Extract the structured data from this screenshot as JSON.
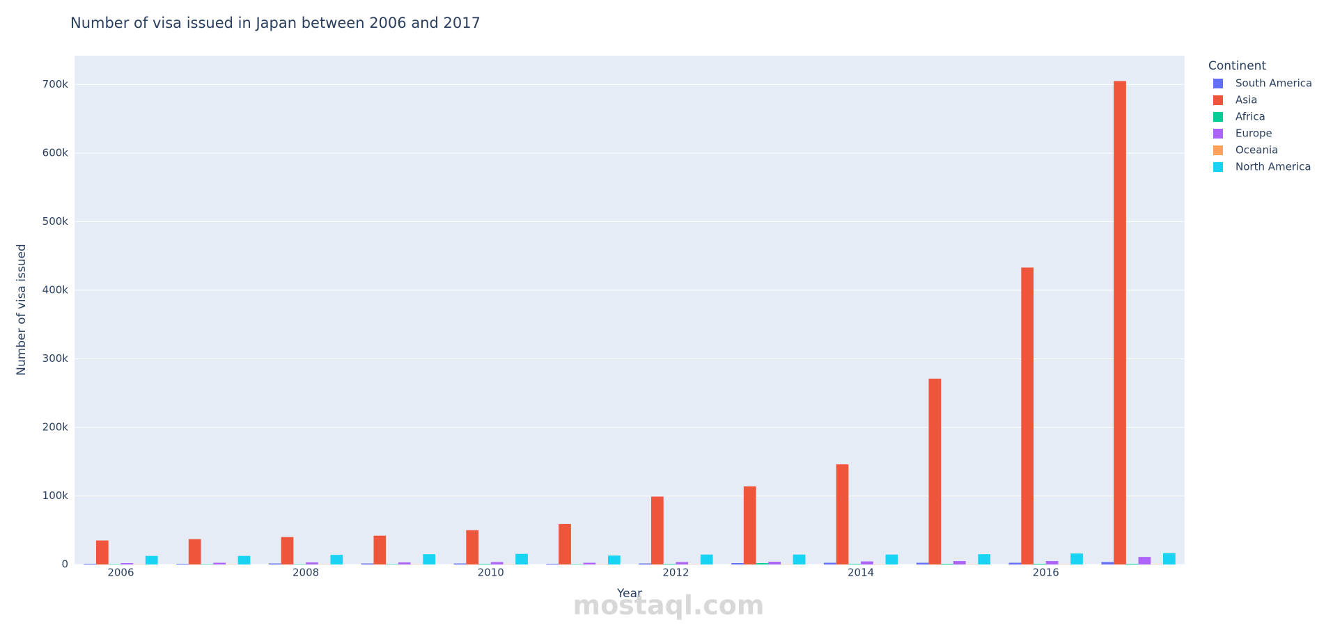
{
  "chart_data": {
    "type": "bar",
    "title": "Number of visa issued in Japan between 2006 and 2017",
    "x_label": "Year",
    "y_label": "Number of visa issued",
    "legend_title": "Continent",
    "watermark": "mostaql.com",
    "x": [
      2006,
      2007,
      2008,
      2009,
      2010,
      2011,
      2012,
      2013,
      2014,
      2015,
      2016,
      2017
    ],
    "series": [
      {
        "name": "South America",
        "color": "#636efa",
        "values": [
          1000,
          1000,
          1500,
          1500,
          1500,
          1000,
          1500,
          2000,
          2500,
          2500,
          2500,
          3500
        ]
      },
      {
        "name": "Asia",
        "color": "#ef553b",
        "values": [
          35000,
          37000,
          40000,
          42000,
          50000,
          59000,
          99000,
          114000,
          146000,
          271000,
          433000,
          705000
        ]
      },
      {
        "name": "Africa",
        "color": "#00cc96",
        "values": [
          500,
          500,
          500,
          500,
          800,
          500,
          800,
          2000,
          800,
          1000,
          1000,
          1000
        ]
      },
      {
        "name": "Europe",
        "color": "#ab63fa",
        "values": [
          2000,
          2500,
          3000,
          3000,
          3500,
          2500,
          3500,
          4000,
          4500,
          5000,
          5000,
          11000
        ]
      },
      {
        "name": "Oceania",
        "color": "#ffa15a",
        "values": [
          300,
          300,
          300,
          300,
          300,
          300,
          300,
          300,
          300,
          300,
          300,
          300
        ]
      },
      {
        "name": "North America",
        "color": "#19d3f3",
        "values": [
          12500,
          12500,
          14000,
          15000,
          15500,
          13000,
          14500,
          14500,
          14500,
          15000,
          16000,
          16500
        ]
      }
    ],
    "xlim": [
      2005.5,
      2017.5
    ],
    "xticks": [
      2006,
      2008,
      2010,
      2012,
      2014,
      2016
    ],
    "ylim": [
      0,
      742000
    ],
    "yticks": [
      0,
      {
        "value": 100000,
        "label": "100k"
      },
      {
        "value": 200000,
        "label": "200k"
      },
      {
        "value": 300000,
        "label": "300k"
      },
      {
        "value": 400000,
        "label": "400k"
      },
      {
        "value": 500000,
        "label": "500k"
      },
      {
        "value": 600000,
        "label": "600k"
      },
      {
        "value": 700000,
        "label": "700k"
      }
    ],
    "grid": true
  }
}
